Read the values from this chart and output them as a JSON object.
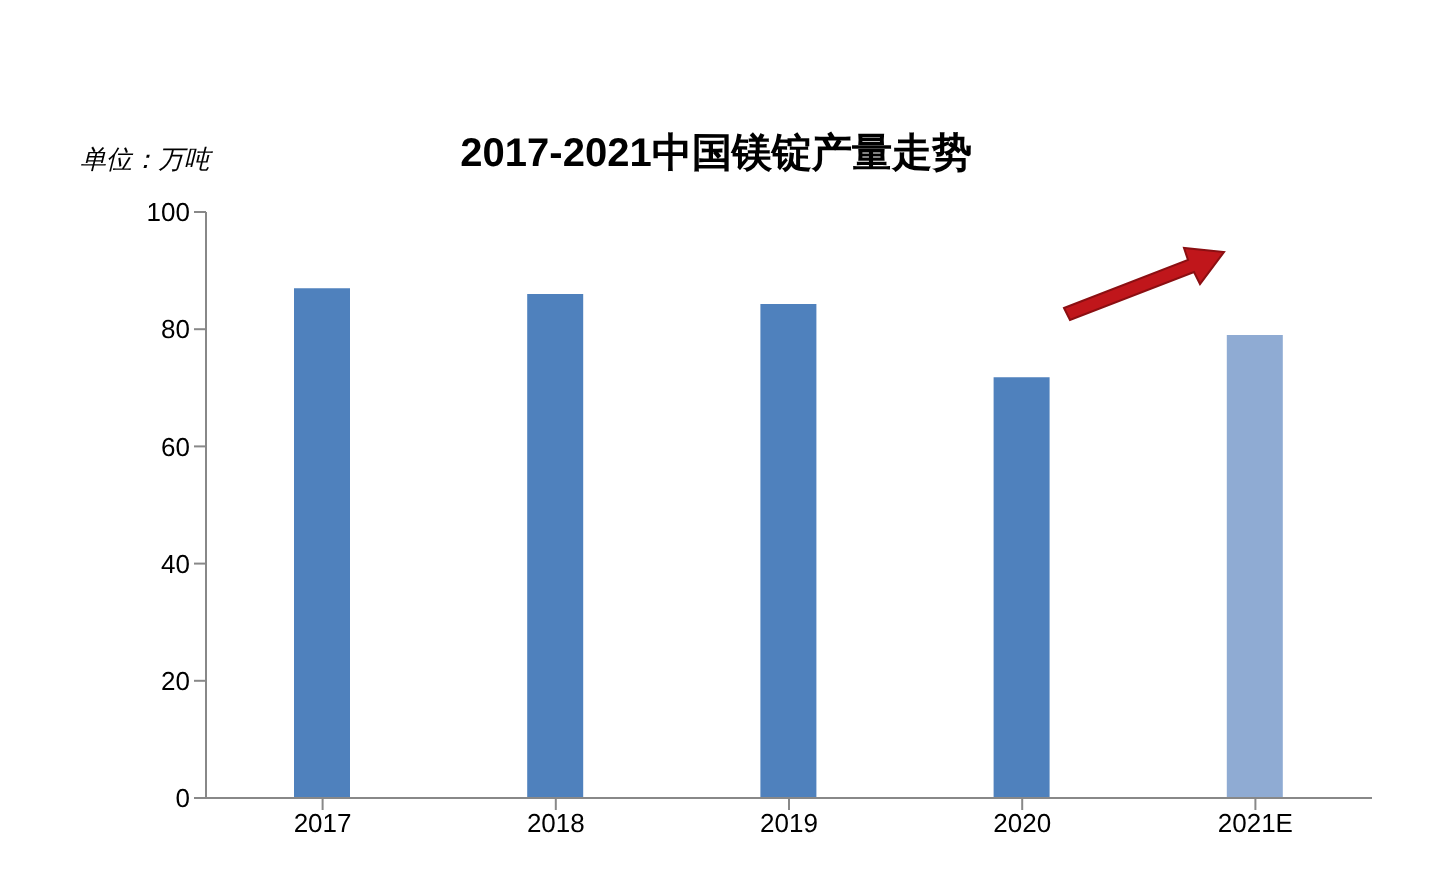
{
  "chart_data": {
    "type": "bar",
    "title": "2017-2021中国镁锭产量走势",
    "ylabel": "单位：万吨",
    "categories": [
      "2017",
      "2018",
      "2019",
      "2020",
      "2021E"
    ],
    "values": [
      87,
      86,
      84.3,
      71.8,
      79
    ],
    "colors": [
      "#4f81bd",
      "#4f81bd",
      "#4f81bd",
      "#4f81bd",
      "#8fabd3"
    ],
    "ylim": [
      0,
      100
    ],
    "yticks": [
      0,
      20,
      40,
      60,
      80,
      100
    ],
    "grid": false
  }
}
